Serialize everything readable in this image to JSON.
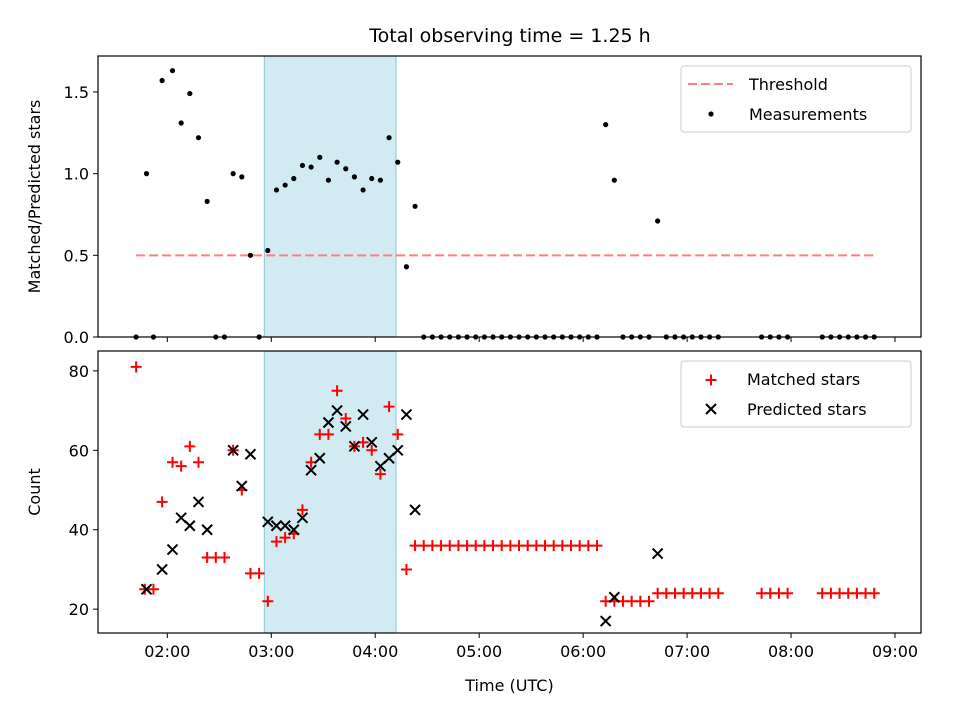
{
  "title": "Total observing time = 1.25 h",
  "colors": {
    "threshold": "#ff7f7f",
    "measurements": "#000000",
    "matched": "#ff0000",
    "predicted": "#000000",
    "window_fill": "#add8e6"
  },
  "chart_data": [
    {
      "type": "scatter",
      "ylabel": "Matched/Predicted stars",
      "xlabel": "",
      "xlim": [
        "01:20",
        "09:15"
      ],
      "ylim": [
        0,
        1.72
      ],
      "yticks": [
        "0.0",
        "0.5",
        "1.0",
        "1.5"
      ],
      "xticks": [
        "02:00",
        "03:00",
        "04:00",
        "05:00",
        "06:00",
        "07:00",
        "08:00",
        "09:00"
      ],
      "xticklabels_visible": false,
      "shaded_window": [
        "02:56",
        "04:12"
      ],
      "legend": {
        "placement": "upper right",
        "entries": [
          "Threshold",
          "Measurements"
        ]
      },
      "series": [
        {
          "name": "Threshold",
          "kind": "dashed-line",
          "x": [
            "01:42",
            "08:48"
          ],
          "y": [
            0.5,
            0.5
          ]
        },
        {
          "name": "Measurements",
          "kind": "points",
          "points": [
            [
              "01:42",
              0
            ],
            [
              "01:48",
              1.0
            ],
            [
              "01:52",
              0
            ],
            [
              "01:57",
              1.57
            ],
            [
              "02:03",
              1.63
            ],
            [
              "02:08",
              1.31
            ],
            [
              "02:13",
              1.49
            ],
            [
              "02:18",
              1.22
            ],
            [
              "02:23",
              0.83
            ],
            [
              "02:28",
              0
            ],
            [
              "02:33",
              0
            ],
            [
              "02:38",
              1.0
            ],
            [
              "02:43",
              0.98
            ],
            [
              "02:48",
              0.5
            ],
            [
              "02:53",
              0
            ],
            [
              "02:58",
              0.53
            ],
            [
              "03:03",
              0.9
            ],
            [
              "03:08",
              0.93
            ],
            [
              "03:13",
              0.97
            ],
            [
              "03:18",
              1.05
            ],
            [
              "03:23",
              1.04
            ],
            [
              "03:28",
              1.1
            ],
            [
              "03:33",
              0.96
            ],
            [
              "03:38",
              1.07
            ],
            [
              "03:43",
              1.03
            ],
            [
              "03:48",
              0.98
            ],
            [
              "03:53",
              0.9
            ],
            [
              "03:58",
              0.97
            ],
            [
              "04:03",
              0.96
            ],
            [
              "04:08",
              1.22
            ],
            [
              "04:13",
              1.07
            ],
            [
              "04:18",
              0.43
            ],
            [
              "04:23",
              0.8
            ],
            [
              "04:28",
              0
            ],
            [
              "04:33",
              0
            ],
            [
              "04:38",
              0
            ],
            [
              "04:43",
              0
            ],
            [
              "04:48",
              0
            ],
            [
              "04:53",
              0
            ],
            [
              "04:58",
              0
            ],
            [
              "05:03",
              0
            ],
            [
              "05:08",
              0
            ],
            [
              "05:13",
              0
            ],
            [
              "05:18",
              0
            ],
            [
              "05:23",
              0
            ],
            [
              "05:28",
              0
            ],
            [
              "05:33",
              0
            ],
            [
              "05:38",
              0
            ],
            [
              "05:43",
              0
            ],
            [
              "05:48",
              0
            ],
            [
              "05:53",
              0
            ],
            [
              "05:58",
              0
            ],
            [
              "06:03",
              0
            ],
            [
              "06:08",
              0
            ],
            [
              "06:13",
              1.3
            ],
            [
              "06:18",
              0.96
            ],
            [
              "06:23",
              0
            ],
            [
              "06:28",
              0
            ],
            [
              "06:33",
              0
            ],
            [
              "06:38",
              0
            ],
            [
              "06:43",
              0.71
            ],
            [
              "06:48",
              0
            ],
            [
              "06:53",
              0
            ],
            [
              "06:58",
              0
            ],
            [
              "07:03",
              0
            ],
            [
              "07:08",
              0
            ],
            [
              "07:13",
              0
            ],
            [
              "07:18",
              0
            ],
            [
              "07:43",
              0
            ],
            [
              "07:48",
              0
            ],
            [
              "07:53",
              0
            ],
            [
              "07:58",
              0
            ],
            [
              "08:18",
              0
            ],
            [
              "08:23",
              0
            ],
            [
              "08:28",
              0
            ],
            [
              "08:33",
              0
            ],
            [
              "08:38",
              0
            ],
            [
              "08:43",
              0
            ],
            [
              "08:48",
              0
            ]
          ]
        }
      ]
    },
    {
      "type": "scatter",
      "ylabel": "Count",
      "xlabel": "Time (UTC)",
      "xlim": [
        "01:20",
        "09:15"
      ],
      "ylim": [
        14,
        85
      ],
      "yticks": [
        "20",
        "40",
        "60",
        "80"
      ],
      "xticks": [
        "02:00",
        "03:00",
        "04:00",
        "05:00",
        "06:00",
        "07:00",
        "08:00",
        "09:00"
      ],
      "xticklabels_visible": true,
      "shaded_window": [
        "02:56",
        "04:12"
      ],
      "legend": {
        "placement": "upper right",
        "entries": [
          "Matched stars",
          "Predicted stars"
        ]
      },
      "series": [
        {
          "name": "Matched stars",
          "kind": "plus",
          "points": [
            [
              "01:42",
              81
            ],
            [
              "01:47",
              25
            ],
            [
              "01:52",
              25
            ],
            [
              "01:57",
              47
            ],
            [
              "02:03",
              57
            ],
            [
              "02:08",
              56
            ],
            [
              "02:13",
              61
            ],
            [
              "02:18",
              57
            ],
            [
              "02:23",
              33
            ],
            [
              "02:28",
              33
            ],
            [
              "02:33",
              33
            ],
            [
              "02:38",
              60
            ],
            [
              "02:43",
              50
            ],
            [
              "02:48",
              29
            ],
            [
              "02:53",
              29
            ],
            [
              "02:58",
              22
            ],
            [
              "03:03",
              37
            ],
            [
              "03:08",
              38
            ],
            [
              "03:13",
              39
            ],
            [
              "03:18",
              45
            ],
            [
              "03:23",
              57
            ],
            [
              "03:28",
              64
            ],
            [
              "03:33",
              64
            ],
            [
              "03:38",
              75
            ],
            [
              "03:43",
              68
            ],
            [
              "03:48",
              61
            ],
            [
              "03:53",
              62
            ],
            [
              "03:58",
              60
            ],
            [
              "04:03",
              54
            ],
            [
              "04:08",
              71
            ],
            [
              "04:13",
              64
            ],
            [
              "04:18",
              30
            ],
            [
              "04:23",
              36
            ],
            [
              "04:28",
              36
            ],
            [
              "04:33",
              36
            ],
            [
              "04:38",
              36
            ],
            [
              "04:43",
              36
            ],
            [
              "04:48",
              36
            ],
            [
              "04:53",
              36
            ],
            [
              "04:58",
              36
            ],
            [
              "05:03",
              36
            ],
            [
              "05:08",
              36
            ],
            [
              "05:13",
              36
            ],
            [
              "05:18",
              36
            ],
            [
              "05:23",
              36
            ],
            [
              "05:28",
              36
            ],
            [
              "05:33",
              36
            ],
            [
              "05:38",
              36
            ],
            [
              "05:43",
              36
            ],
            [
              "05:48",
              36
            ],
            [
              "05:53",
              36
            ],
            [
              "05:58",
              36
            ],
            [
              "06:03",
              36
            ],
            [
              "06:08",
              36
            ],
            [
              "06:13",
              22
            ],
            [
              "06:18",
              22
            ],
            [
              "06:23",
              22
            ],
            [
              "06:28",
              22
            ],
            [
              "06:33",
              22
            ],
            [
              "06:38",
              22
            ],
            [
              "06:43",
              24
            ],
            [
              "06:48",
              24
            ],
            [
              "06:53",
              24
            ],
            [
              "06:58",
              24
            ],
            [
              "07:03",
              24
            ],
            [
              "07:08",
              24
            ],
            [
              "07:13",
              24
            ],
            [
              "07:18",
              24
            ],
            [
              "07:43",
              24
            ],
            [
              "07:48",
              24
            ],
            [
              "07:53",
              24
            ],
            [
              "07:58",
              24
            ],
            [
              "08:18",
              24
            ],
            [
              "08:23",
              24
            ],
            [
              "08:28",
              24
            ],
            [
              "08:33",
              24
            ],
            [
              "08:38",
              24
            ],
            [
              "08:43",
              24
            ],
            [
              "08:48",
              24
            ]
          ]
        },
        {
          "name": "Predicted stars",
          "kind": "x",
          "points": [
            [
              "01:48",
              25
            ],
            [
              "01:57",
              30
            ],
            [
              "02:03",
              35
            ],
            [
              "02:08",
              43
            ],
            [
              "02:13",
              41
            ],
            [
              "02:18",
              47
            ],
            [
              "02:23",
              40
            ],
            [
              "02:38",
              60
            ],
            [
              "02:43",
              51
            ],
            [
              "02:48",
              59
            ],
            [
              "02:58",
              42
            ],
            [
              "03:03",
              41
            ],
            [
              "03:08",
              41
            ],
            [
              "03:13",
              40
            ],
            [
              "03:18",
              43
            ],
            [
              "03:23",
              55
            ],
            [
              "03:28",
              58
            ],
            [
              "03:33",
              67
            ],
            [
              "03:38",
              70
            ],
            [
              "03:43",
              66
            ],
            [
              "03:48",
              61
            ],
            [
              "03:53",
              69
            ],
            [
              "03:58",
              62
            ],
            [
              "04:03",
              56
            ],
            [
              "04:08",
              58
            ],
            [
              "04:13",
              60
            ],
            [
              "04:18",
              69
            ],
            [
              "04:23",
              45
            ],
            [
              "06:13",
              17
            ],
            [
              "06:18",
              23
            ],
            [
              "06:43",
              34
            ]
          ]
        }
      ]
    }
  ]
}
